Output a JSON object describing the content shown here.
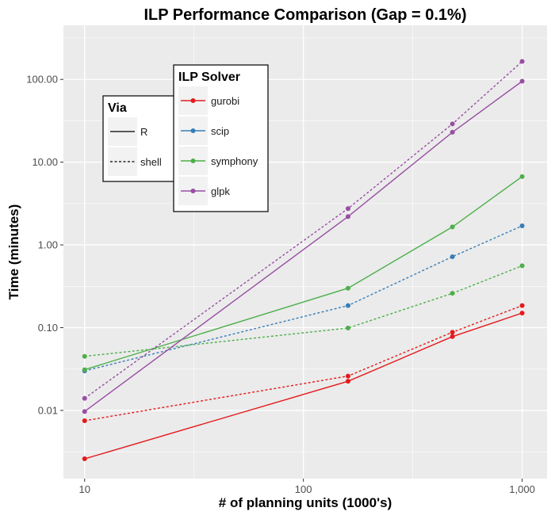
{
  "chart_data": {
    "type": "line",
    "title": "ILP Performance Comparison (Gap = 0.1%)",
    "xlabel": "# of planning units (1000's)",
    "ylabel": "Time (minutes)",
    "x_scale": "log",
    "y_scale": "log",
    "xlim": [
      8,
      1300
    ],
    "ylim": [
      0.0015,
      450
    ],
    "x_ticks": [
      10,
      100,
      1000
    ],
    "x_tick_labels": [
      "10",
      "100",
      "1,000"
    ],
    "y_ticks": [
      0.01,
      0.1,
      1,
      10,
      100
    ],
    "y_tick_labels": [
      "0.01",
      "0.10",
      "1.00",
      "10.00",
      "100.00"
    ],
    "grid": true,
    "x": [
      10,
      160,
      480,
      1000
    ],
    "series": [
      {
        "name": "gurobi",
        "via": "R",
        "values": [
          0.0026,
          0.0225,
          0.078,
          0.15
        ]
      },
      {
        "name": "gurobi",
        "via": "shell",
        "values": [
          0.0075,
          0.026,
          0.088,
          0.185
        ]
      },
      {
        "name": "scip",
        "via": "shell",
        "values": [
          0.03,
          0.185,
          0.72,
          1.7
        ]
      },
      {
        "name": "symphony",
        "via": "R",
        "values": [
          0.031,
          0.3,
          1.65,
          6.7
        ]
      },
      {
        "name": "symphony",
        "via": "shell",
        "values": [
          0.045,
          0.099,
          0.26,
          0.56
        ]
      },
      {
        "name": "glpk",
        "via": "R",
        "values": [
          0.0097,
          2.2,
          23,
          95
        ]
      },
      {
        "name": "glpk",
        "via": "shell",
        "values": [
          0.014,
          2.75,
          29,
          165
        ]
      }
    ],
    "legends": {
      "via": {
        "title": "Via",
        "items": [
          "R",
          "shell"
        ]
      },
      "solver": {
        "title": "ILP Solver",
        "items": [
          "gurobi",
          "scip",
          "symphony",
          "glpk"
        ]
      }
    },
    "colors": {
      "gurobi": "#e41a1c",
      "scip": "#377eb8",
      "symphony": "#4daf4a",
      "glpk": "#984ea3",
      "panel": "#ebebeb",
      "grid": "#ffffff"
    },
    "legend_placement": "inside top-left"
  }
}
